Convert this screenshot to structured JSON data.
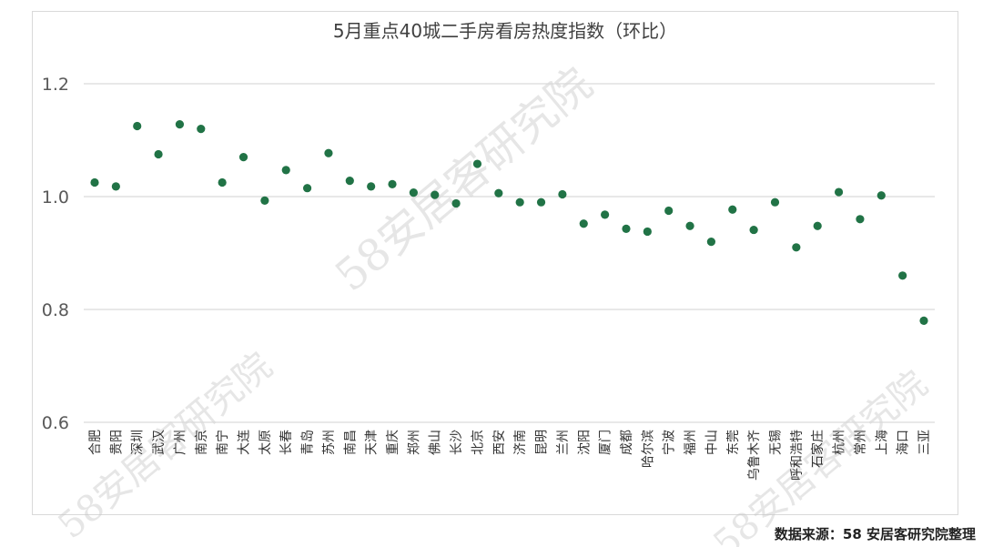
{
  "source_note": "数据来源：58 安居客研究院整理",
  "watermark_text": "58安居客研究院",
  "colors": {
    "point": "#217346",
    "grid": "#d9d9d9",
    "axis_text": "#595959",
    "title": "#404040"
  },
  "chart_data": {
    "type": "scatter",
    "title": "5月重点40城二手房看房热度指数（环比）",
    "ylim": [
      0.6,
      1.2
    ],
    "yticks": [
      "0.6",
      "0.8",
      "1.0",
      "1.2"
    ],
    "grid": true,
    "legend": "none",
    "categories": [
      "合肥",
      "贵阳",
      "深圳",
      "武汉",
      "广州",
      "南京",
      "南宁",
      "大连",
      "太原",
      "长春",
      "青岛",
      "苏州",
      "南昌",
      "天津",
      "重庆",
      "郑州",
      "佛山",
      "长沙",
      "北京",
      "西安",
      "济南",
      "昆明",
      "兰州",
      "沈阳",
      "厦门",
      "成都",
      "哈尔滨",
      "宁波",
      "福州",
      "中山",
      "东莞",
      "乌鲁木齐",
      "无锡",
      "呼和浩特",
      "石家庄",
      "杭州",
      "常州",
      "上海",
      "海口",
      "三亚"
    ],
    "values": [
      1.025,
      1.018,
      1.125,
      1.075,
      1.128,
      1.12,
      1.025,
      1.07,
      0.993,
      1.047,
      1.015,
      1.077,
      1.028,
      1.018,
      1.022,
      1.007,
      1.003,
      0.988,
      1.058,
      1.006,
      0.99,
      0.99,
      1.004,
      0.952,
      0.968,
      0.943,
      0.938,
      0.975,
      0.948,
      0.92,
      0.977,
      0.941,
      0.99,
      0.91,
      0.948,
      1.008,
      0.96,
      1.002,
      0.86,
      0.78
    ]
  }
}
